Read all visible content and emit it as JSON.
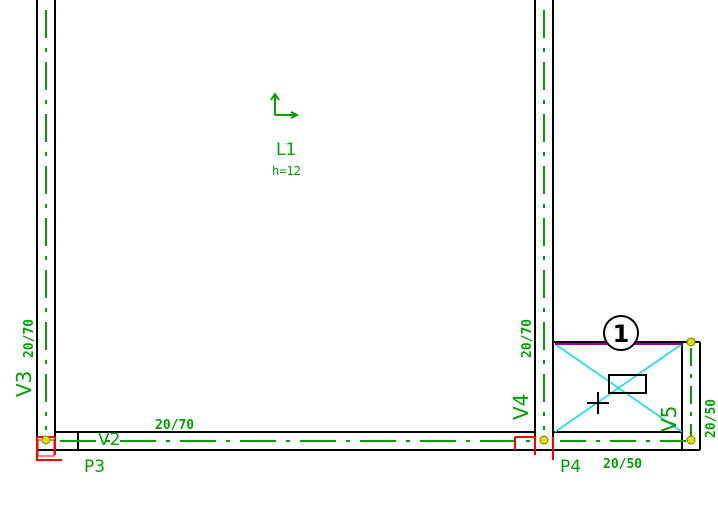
{
  "slab": {
    "name": "L1",
    "thickness": "h=12"
  },
  "beams": {
    "v2": {
      "name": "V2",
      "section": "20/70"
    },
    "v3": {
      "name": "V3",
      "section": "20/70"
    },
    "v4": {
      "name": "V4",
      "section": "20/70"
    },
    "v5": {
      "name": "V5",
      "section": "20/50"
    },
    "bottom_right_section": "20/50"
  },
  "columns": {
    "p3": "P3",
    "p4": "P4"
  },
  "opening_marker": "1",
  "colors": {
    "beam_outline": "#000000",
    "axis_dash": "#00a000",
    "label": "#00a000",
    "column": "#ff0000",
    "opening_cross": "#00e0e0",
    "opening_edge": "#a000a0",
    "node": "#e0e000"
  }
}
